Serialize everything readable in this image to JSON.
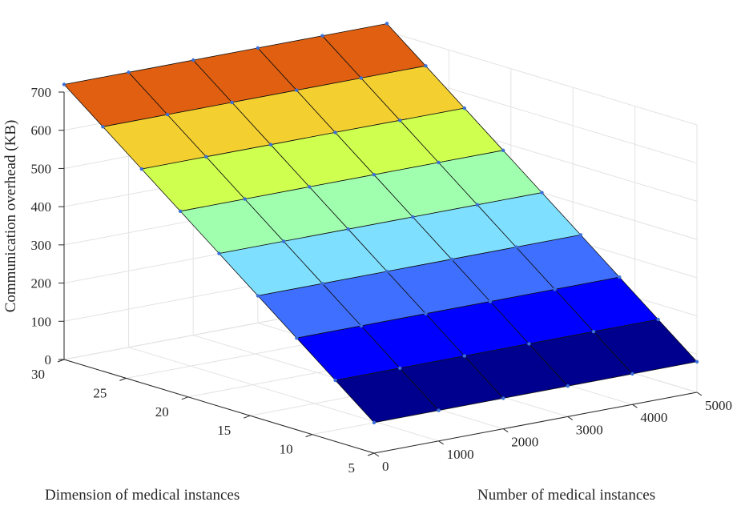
{
  "chart_data": {
    "type": "surface3d",
    "x_label": "Number of medical instances",
    "y_label": "Dimension of medical instances",
    "z_label": "Communication overhead (KB)",
    "x_ticks": [
      "0",
      "1000",
      "2000",
      "3000",
      "4000",
      "5000"
    ],
    "y_ticks": [
      "5",
      "10",
      "15",
      "20",
      "25",
      "30"
    ],
    "z_ticks": [
      "0",
      "100",
      "200",
      "300",
      "400",
      "500",
      "600",
      "700"
    ],
    "xlim": [
      0,
      5000
    ],
    "ylim": [
      5,
      30
    ],
    "zlim": [
      0,
      700
    ],
    "grid": true,
    "x": [
      0,
      1000,
      2000,
      3000,
      4000,
      5000
    ],
    "y": [
      5,
      10,
      15,
      20,
      25,
      30
    ],
    "values": [
      [
        80,
        80,
        80,
        80,
        80,
        80
      ],
      [
        160,
        160,
        160,
        160,
        160,
        160
      ],
      [
        240,
        240,
        240,
        240,
        240,
        240
      ],
      [
        320,
        320,
        320,
        320,
        320,
        320
      ],
      [
        400,
        400,
        400,
        400,
        400,
        400
      ],
      [
        480,
        480,
        480,
        480,
        480,
        480
      ],
      [
        560,
        560,
        560,
        560,
        560,
        560
      ],
      [
        640,
        640,
        640,
        640,
        640,
        640
      ],
      [
        720,
        720,
        720,
        720,
        720,
        720
      ]
    ],
    "y_rows": [
      5,
      8.125,
      11.25,
      14.375,
      17.5,
      20.625,
      23.75,
      26.875,
      30
    ],
    "colormap": [
      "#00008f",
      "#0000ff",
      "#3f6fff",
      "#7fdfff",
      "#9fffaf",
      "#cfff4f",
      "#f3cf30",
      "#e05f10",
      "#c80000"
    ]
  }
}
